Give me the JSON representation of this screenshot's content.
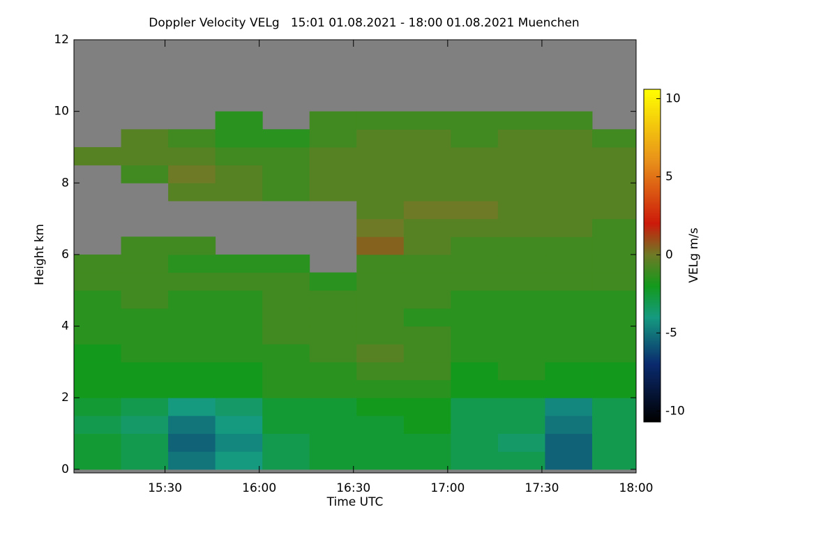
{
  "chart_data": {
    "type": "heatmap",
    "title": "Doppler Velocity VELg   15:01 01.08.2021 - 18:00 01.08.2021 Muenchen",
    "x_label": "Time UTC",
    "y_label": "Height km",
    "colorbar_label": "VELg m/s",
    "background": "#808080",
    "xlim": [
      901,
      1080
    ],
    "xticks": [
      {
        "value": 930,
        "label": "15:30"
      },
      {
        "value": 960,
        "label": "16:00"
      },
      {
        "value": 990,
        "label": "16:30"
      },
      {
        "value": 1020,
        "label": "17:00"
      },
      {
        "value": 1050,
        "label": "17:30"
      },
      {
        "value": 1080,
        "label": "18:00"
      }
    ],
    "ylim": [
      -0.1,
      12
    ],
    "yticks": [
      0,
      2,
      4,
      6,
      8,
      10,
      12
    ],
    "zlim": [
      -10.7,
      10.6
    ],
    "zticks": [
      -10,
      -5,
      0,
      5,
      10
    ],
    "colorscale": [
      [
        -10.7,
        "#000000"
      ],
      [
        -7,
        "#0a2a6e"
      ],
      [
        -4,
        "#159a80"
      ],
      [
        -2,
        "#139a1c"
      ],
      [
        0,
        "#6e7a26"
      ],
      [
        2,
        "#cc1a0a"
      ],
      [
        6,
        "#e8901a"
      ],
      [
        10.6,
        "#ffff00"
      ]
    ],
    "x": [
      908.5,
      923.5,
      938.5,
      953.5,
      968.5,
      983.5,
      998.5,
      1013.5,
      1028.5,
      1043.5,
      1058.5,
      1073.5
    ],
    "y": [
      0.25,
      0.75,
      1.25,
      1.75,
      2.25,
      2.75,
      3.25,
      3.75,
      4.25,
      4.75,
      5.25,
      5.75,
      6.25,
      6.75,
      7.25,
      7.75,
      8.25,
      8.75,
      9.25,
      9.75,
      10.25,
      10.75,
      11.25,
      11.75
    ],
    "values": [
      [
        -2.5,
        -2.5,
        -3,
        -2.5,
        -2,
        -2,
        -2,
        -1.5,
        -1.5,
        -1.5,
        -1,
        -1,
        null,
        null,
        null,
        null,
        null,
        -0.5,
        null,
        null,
        null,
        null,
        null,
        null
      ],
      [
        -3,
        -3,
        -3.5,
        -3,
        -2,
        -2,
        -1.5,
        -1.5,
        -1.5,
        -1,
        -1,
        -1,
        -1,
        null,
        null,
        null,
        -1,
        -0.5,
        -0.5,
        null,
        null,
        null,
        null,
        null
      ],
      [
        -5,
        -5.5,
        -5,
        -4,
        -2,
        -2,
        -1.5,
        -1.5,
        -1.5,
        -1.5,
        -1,
        -1.5,
        -1,
        null,
        null,
        -0.5,
        0,
        -0.5,
        -1,
        null,
        null,
        null,
        null,
        null
      ],
      [
        -4,
        -4.5,
        -4,
        -3.5,
        -2,
        -2,
        -1.5,
        -1.5,
        -1.5,
        -1.5,
        -1,
        -1.5,
        null,
        null,
        null,
        -0.5,
        -0.5,
        -1,
        -1.5,
        -1.5,
        null,
        null,
        null,
        null
      ],
      [
        -3,
        -3,
        -2.5,
        -2.5,
        -1.5,
        -1.5,
        -1.5,
        -1,
        -1,
        -1,
        -1,
        -1.5,
        null,
        null,
        null,
        -1,
        -1,
        -1,
        -1.5,
        null,
        null,
        null,
        null,
        null
      ],
      [
        -2.5,
        -2.5,
        -2.5,
        -2.5,
        -1.5,
        -1.5,
        -1,
        -1,
        -1,
        -1,
        -1.5,
        null,
        null,
        null,
        null,
        -0.5,
        -0.5,
        -0.5,
        -1,
        -1,
        null,
        null,
        null,
        null
      ],
      [
        -2.5,
        -2.5,
        -2.5,
        -2,
        -1.5,
        -1,
        -0.5,
        -1,
        -1,
        -1,
        -1,
        -1,
        0.5,
        0,
        -0.5,
        -0.5,
        -0.5,
        -0.5,
        -0.5,
        -1,
        null,
        null,
        null,
        null
      ],
      [
        -2.5,
        -2.5,
        -2,
        -2,
        -1.5,
        -1,
        -1,
        -1,
        -1.5,
        -1,
        -1,
        -1,
        -0.5,
        -0.5,
        0,
        -0.5,
        -0.5,
        -0.5,
        -0.5,
        -1,
        null,
        null,
        null,
        null
      ],
      [
        -3,
        -3,
        -3,
        -3,
        -2,
        -2,
        -1.5,
        -1.5,
        -1.5,
        -1.5,
        -1,
        -1,
        -1,
        -0.5,
        0,
        -0.5,
        -0.5,
        -0.5,
        -1,
        -1,
        null,
        null,
        null,
        null
      ],
      [
        -3,
        -3.5,
        -3,
        -3,
        -2,
        -1.5,
        -1.5,
        -1.5,
        -1.5,
        -1.5,
        -1,
        -1,
        -1,
        -0.5,
        -0.5,
        -0.5,
        -0.5,
        -0.5,
        -0.5,
        -1,
        null,
        null,
        null,
        null
      ],
      [
        -5.5,
        -5.5,
        -5,
        -4.5,
        -2,
        -2,
        -1.5,
        -1.5,
        -1.5,
        -1.5,
        -1,
        -1,
        -1,
        -0.5,
        -0.5,
        -0.5,
        -0.5,
        -0.5,
        -0.5,
        -1,
        null,
        null,
        null,
        null
      ],
      [
        -3,
        -3,
        -3,
        -3,
        -2,
        -2,
        -1.5,
        -1.5,
        -1.5,
        -1.5,
        -1,
        -1,
        -1,
        -1,
        -0.5,
        -0.5,
        -0.5,
        -0.5,
        -1,
        null,
        null,
        null,
        null,
        null
      ]
    ]
  }
}
